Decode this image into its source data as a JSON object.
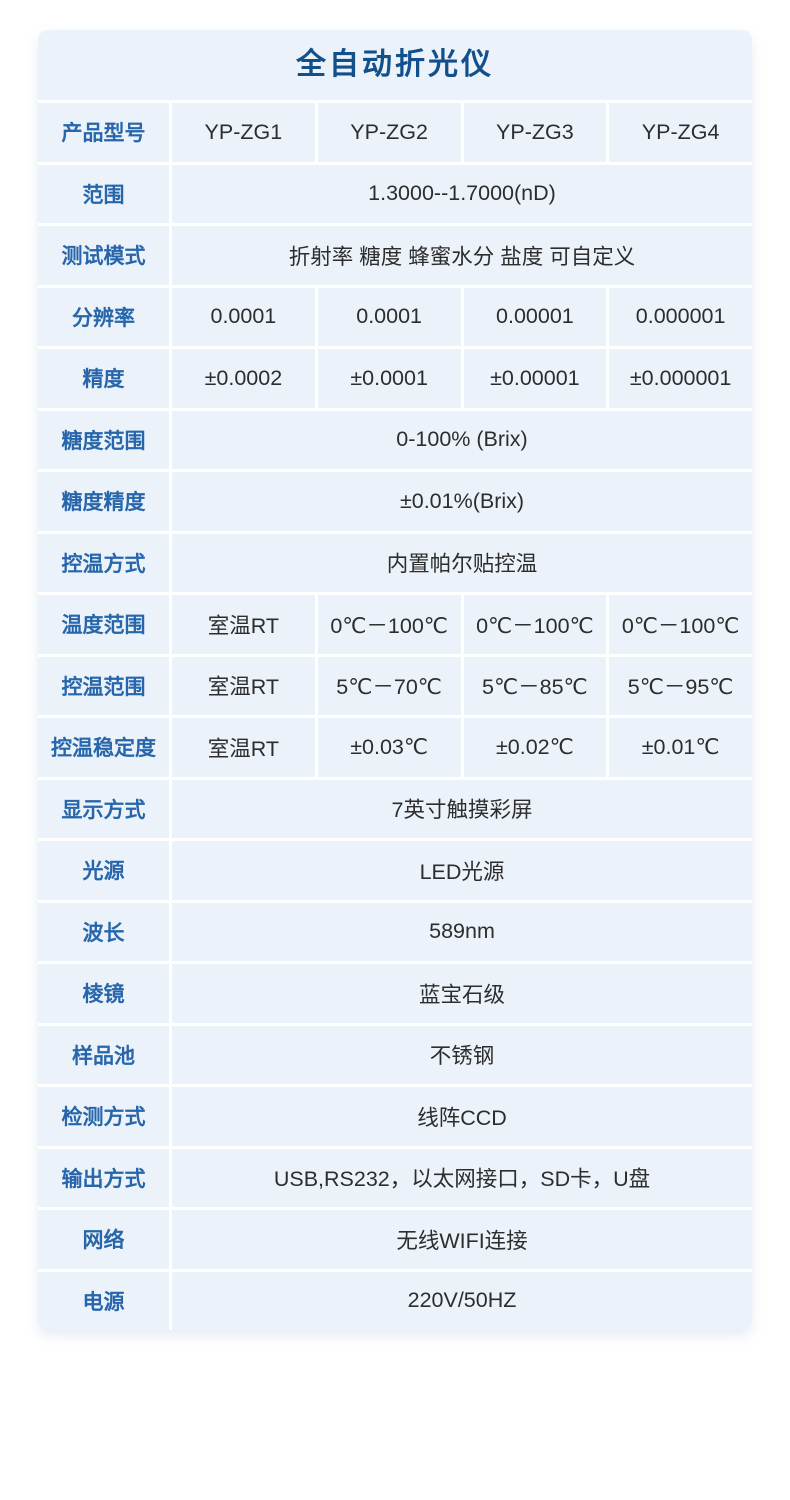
{
  "table": {
    "title": "全自动折光仪",
    "rows": [
      {
        "label": "产品型号",
        "values": [
          "YP-ZG1",
          "YP-ZG2",
          "YP-ZG3",
          "YP-ZG4"
        ]
      },
      {
        "label": "范围",
        "span_value": "1.3000--1.7000(nD)"
      },
      {
        "label": "测试模式",
        "span_value": "折射率 糖度 蜂蜜水分 盐度 可自定义"
      },
      {
        "label": "分辨率",
        "values": [
          "0.0001",
          "0.0001",
          "0.00001",
          "0.000001"
        ]
      },
      {
        "label": "精度",
        "values": [
          "±0.0002",
          "±0.0001",
          "±0.00001",
          "±0.000001"
        ]
      },
      {
        "label": "糖度范围",
        "span_value": "0-100% (Brix)"
      },
      {
        "label": "糖度精度",
        "span_value": "±0.01%(Brix)"
      },
      {
        "label": "控温方式",
        "span_value": "内置帕尔贴控温"
      },
      {
        "label": "温度范围",
        "values": [
          "室温RT",
          "0℃－100℃",
          "0℃－100℃",
          "0℃－100℃"
        ]
      },
      {
        "label": "控温范围",
        "values": [
          "室温RT",
          "5℃－70℃",
          "5℃－85℃",
          "5℃－95℃"
        ]
      },
      {
        "label": "控温稳定度",
        "values": [
          "室温RT",
          "±0.03℃",
          "±0.02℃",
          "±0.01℃"
        ]
      },
      {
        "label": "显示方式",
        "span_value": "7英寸触摸彩屏"
      },
      {
        "label": "光源",
        "span_value": "LED光源"
      },
      {
        "label": "波长",
        "span_value": "589nm"
      },
      {
        "label": "棱镜",
        "span_value": "蓝宝石级"
      },
      {
        "label": "样品池",
        "span_value": "不锈钢"
      },
      {
        "label": "检测方式",
        "span_value": "线阵CCD"
      },
      {
        "label": "输出方式",
        "span_value": "USB,RS232，以太网接口，SD卡，U盘"
      },
      {
        "label": "网络",
        "span_value": "无线WIFI连接"
      },
      {
        "label": "电源",
        "span_value": "220V/50HZ"
      }
    ]
  },
  "colors": {
    "title_color": "#12508c",
    "label_color": "#2766ab",
    "value_color": "#2d2d2d",
    "cell_bg": "#ebf2fa",
    "page_bg": "#ffffff"
  }
}
